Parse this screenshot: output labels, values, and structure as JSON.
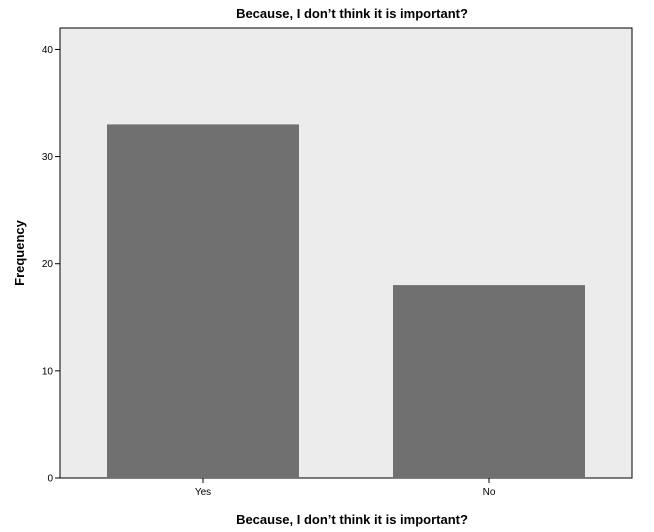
{
  "chart_data": {
    "type": "bar",
    "title": "Because, I don’t think it is important?",
    "xlabel": "Because, I don’t think it is important?",
    "ylabel": "Frequency",
    "categories": [
      "Yes",
      "No"
    ],
    "values": [
      33,
      18
    ],
    "ylim": [
      0,
      42
    ],
    "yticks": [
      0,
      10,
      20,
      30,
      40
    ],
    "grid": false,
    "colors": {
      "bar": "#707070",
      "plot_background": "#ececec",
      "axis": "#000000"
    }
  }
}
